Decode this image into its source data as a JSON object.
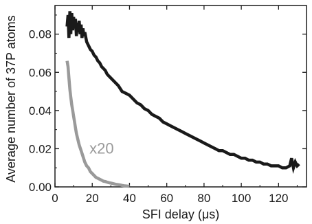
{
  "chart_data": {
    "type": "line",
    "xlabel": "SFI delay (μs)",
    "ylabel": "Average number of 37P atoms",
    "xlim": [
      0,
      135
    ],
    "ylim": [
      0,
      0.095
    ],
    "x_ticks": [
      "0",
      "20",
      "40",
      "60",
      "80",
      "100",
      "120"
    ],
    "y_ticks": [
      "0.00",
      "0.02",
      "0.04",
      "0.06",
      "0.08"
    ],
    "x_tick_values": [
      0,
      20,
      40,
      60,
      80,
      100,
      120
    ],
    "y_tick_values": [
      0,
      0.02,
      0.04,
      0.06,
      0.08
    ],
    "grid": false,
    "annotations": [
      {
        "text": "x20",
        "x": 18.5,
        "y": 0.0175
      }
    ],
    "series": [
      {
        "color": "#1a1a1a",
        "x": [
          6.5,
          7.0,
          7.5,
          8.0,
          8.5,
          9.0,
          9.5,
          10.0,
          10.5,
          11.0,
          11.5,
          12.0,
          12.5,
          13.0,
          13.5,
          14.0,
          14.5,
          15.0,
          15.5,
          16.0,
          17,
          18,
          19,
          20,
          21,
          22,
          23,
          24,
          25,
          26,
          27,
          28,
          29,
          30,
          32,
          34,
          36,
          38,
          40,
          42,
          44,
          46,
          48,
          50,
          52,
          54,
          56,
          58,
          60,
          62,
          64,
          66,
          68,
          70,
          72,
          74,
          76,
          78,
          80,
          82,
          84,
          86,
          88,
          90,
          92,
          94,
          96,
          98,
          100,
          102,
          104,
          106,
          108,
          110,
          112,
          114,
          116,
          118,
          120,
          122,
          124,
          126,
          127,
          128,
          129,
          130,
          131
        ],
        "y": [
          0.084,
          0.09,
          0.078,
          0.092,
          0.08,
          0.091,
          0.082,
          0.089,
          0.083,
          0.088,
          0.079,
          0.086,
          0.081,
          0.087,
          0.08,
          0.085,
          0.078,
          0.083,
          0.079,
          0.081,
          0.076,
          0.074,
          0.072,
          0.071,
          0.069,
          0.068,
          0.066,
          0.065,
          0.063,
          0.062,
          0.061,
          0.059,
          0.058,
          0.057,
          0.055,
          0.053,
          0.05,
          0.049,
          0.048,
          0.046,
          0.044,
          0.043,
          0.041,
          0.04,
          0.038,
          0.037,
          0.036,
          0.034,
          0.033,
          0.032,
          0.031,
          0.03,
          0.029,
          0.028,
          0.027,
          0.026,
          0.025,
          0.024,
          0.023,
          0.022,
          0.021,
          0.02,
          0.019,
          0.019,
          0.018,
          0.017,
          0.017,
          0.016,
          0.015,
          0.015,
          0.014,
          0.014,
          0.013,
          0.013,
          0.012,
          0.012,
          0.011,
          0.011,
          0.011,
          0.01,
          0.01,
          0.011,
          0.015,
          0.01,
          0.013,
          0.011,
          0.012
        ]
      },
      {
        "name": "x20",
        "color": "#9a9a9a",
        "x": [
          6.5,
          7.0,
          7.5,
          8.0,
          8.5,
          9.0,
          9.5,
          10.0,
          10.5,
          11.0,
          11.5,
          12.0,
          13.0,
          14.0,
          15.0,
          16.0,
          17.0,
          18.0,
          19.0,
          20.0,
          21.0,
          22.0,
          23.0,
          24.0,
          25.0,
          26.0,
          27.0,
          28.0,
          29.0,
          30.0,
          31.0,
          32.0,
          33.0,
          34.0,
          35.0,
          36.0,
          37.0,
          38.0,
          39.0,
          40.0
        ],
        "y": [
          0.066,
          0.063,
          0.057,
          0.051,
          0.047,
          0.043,
          0.04,
          0.037,
          0.034,
          0.031,
          0.028,
          0.026,
          0.022,
          0.019,
          0.016,
          0.013,
          0.011,
          0.01,
          0.008,
          0.007,
          0.006,
          0.005,
          0.0045,
          0.004,
          0.0035,
          0.003,
          0.0028,
          0.0025,
          0.0022,
          0.002,
          0.0018,
          0.0015,
          0.0013,
          0.0012,
          0.001,
          0.0008,
          0.0006,
          0.0005,
          0.0004,
          0.0003
        ]
      }
    ]
  }
}
